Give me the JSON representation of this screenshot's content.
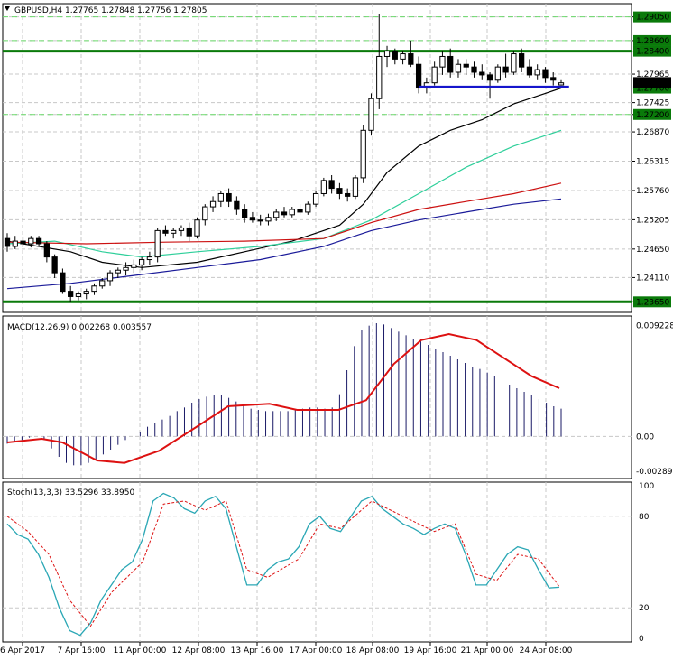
{
  "header": {
    "symbol_label": "GBPUSD,H4",
    "ohlc": "1.27765 1.27848 1.27756 1.27805",
    "menu_icon": "triangle-down-icon"
  },
  "colors": {
    "bull_candle": "#ffffff",
    "bear_candle": "#000000",
    "sma_fast": "#000000",
    "sma_mid": "#2ecf9a",
    "sma_slow": "#cc1111",
    "sma_long": "#1a1a99",
    "level_line": "#0a7a0a",
    "support_line": "#1515cc",
    "macd_hist": "#1a1a66",
    "macd_signal": "#dd1111",
    "stoch_main": "#2aa7b5",
    "stoch_signal": "#dd1111"
  },
  "chart_data": [
    {
      "type": "candlestick",
      "title": "GBPUSD,H4",
      "ylim": [
        1.2345,
        1.293
      ],
      "y_ticks": [
        "1.29050",
        "1.28600",
        "1.28400",
        "1.27965",
        "1.27700",
        "1.27425",
        "1.27200",
        "1.26870",
        "1.26315",
        "1.25760",
        "1.25205",
        "1.24650",
        "1.24110",
        "1.23650"
      ],
      "x_ticks": [
        "6 Apr 2017",
        "7 Apr 16:00",
        "11 Apr 00:00",
        "12 Apr 08:00",
        "13 Apr 16:00",
        "17 Apr 00:00",
        "18 Apr 08:00",
        "19 Apr 16:00",
        "21 Apr 00:00",
        "24 Apr 08:00"
      ],
      "candles": [
        [
          1.2485,
          1.2495,
          1.246,
          1.247
        ],
        [
          1.247,
          1.249,
          1.2465,
          1.248
        ],
        [
          1.248,
          1.2488,
          1.247,
          1.2475
        ],
        [
          1.2475,
          1.249,
          1.2468,
          1.2485
        ],
        [
          1.2485,
          1.249,
          1.247,
          1.2475
        ],
        [
          1.2475,
          1.248,
          1.244,
          1.245
        ],
        [
          1.245,
          1.2455,
          1.241,
          1.242
        ],
        [
          1.242,
          1.2428,
          1.238,
          1.2385
        ],
        [
          1.2385,
          1.2395,
          1.2365,
          1.2375
        ],
        [
          1.2375,
          1.2385,
          1.2368,
          1.238
        ],
        [
          1.238,
          1.239,
          1.237,
          1.2385
        ],
        [
          1.2385,
          1.24,
          1.2378,
          1.2395
        ],
        [
          1.2395,
          1.241,
          1.239,
          1.2405
        ],
        [
          1.2405,
          1.2425,
          1.2395,
          1.242
        ],
        [
          1.242,
          1.243,
          1.241,
          1.2425
        ],
        [
          1.2425,
          1.244,
          1.2415,
          1.243
        ],
        [
          1.243,
          1.2445,
          1.242,
          1.2435
        ],
        [
          1.2435,
          1.245,
          1.2425,
          1.2445
        ],
        [
          1.2445,
          1.246,
          1.2435,
          1.245
        ],
        [
          1.245,
          1.2505,
          1.244,
          1.25
        ],
        [
          1.25,
          1.251,
          1.249,
          1.2495
        ],
        [
          1.2495,
          1.2505,
          1.2485,
          1.25
        ],
        [
          1.25,
          1.251,
          1.249,
          1.2505
        ],
        [
          1.2505,
          1.2515,
          1.248,
          1.249
        ],
        [
          1.249,
          1.2525,
          1.2485,
          1.252
        ],
        [
          1.252,
          1.255,
          1.251,
          1.2545
        ],
        [
          1.2545,
          1.2565,
          1.2535,
          1.2555
        ],
        [
          1.2555,
          1.2575,
          1.2545,
          1.257
        ],
        [
          1.257,
          1.258,
          1.2545,
          1.2555
        ],
        [
          1.2555,
          1.2565,
          1.253,
          1.254
        ],
        [
          1.254,
          1.255,
          1.2515,
          1.2525
        ],
        [
          1.2525,
          1.2535,
          1.2515,
          1.252
        ],
        [
          1.252,
          1.253,
          1.251,
          1.2518
        ],
        [
          1.2518,
          1.2532,
          1.251,
          1.2525
        ],
        [
          1.2525,
          1.254,
          1.2518,
          1.2535
        ],
        [
          1.2535,
          1.2545,
          1.2525,
          1.253
        ],
        [
          1.253,
          1.2545,
          1.2525,
          1.254
        ],
        [
          1.254,
          1.255,
          1.253,
          1.2535
        ],
        [
          1.2535,
          1.2555,
          1.253,
          1.255
        ],
        [
          1.255,
          1.2575,
          1.2545,
          1.257
        ],
        [
          1.257,
          1.26,
          1.2565,
          1.2595
        ],
        [
          1.2595,
          1.2605,
          1.257,
          1.258
        ],
        [
          1.258,
          1.259,
          1.256,
          1.257
        ],
        [
          1.257,
          1.258,
          1.2555,
          1.2565
        ],
        [
          1.2565,
          1.2605,
          1.256,
          1.26
        ],
        [
          1.26,
          1.27,
          1.259,
          1.269
        ],
        [
          1.269,
          1.276,
          1.268,
          1.275
        ],
        [
          1.275,
          1.291,
          1.273,
          1.283
        ],
        [
          1.283,
          1.285,
          1.281,
          1.284
        ],
        [
          1.284,
          1.2845,
          1.2815,
          1.2825
        ],
        [
          1.2825,
          1.284,
          1.2815,
          1.2835
        ],
        [
          1.2835,
          1.286,
          1.281,
          1.2815
        ],
        [
          1.2815,
          1.283,
          1.276,
          1.277
        ],
        [
          1.277,
          1.279,
          1.276,
          1.278
        ],
        [
          1.278,
          1.282,
          1.2775,
          1.281
        ],
        [
          1.281,
          1.284,
          1.2795,
          1.283
        ],
        [
          1.283,
          1.2845,
          1.279,
          1.28
        ],
        [
          1.28,
          1.2825,
          1.279,
          1.2815
        ],
        [
          1.2815,
          1.2825,
          1.2795,
          1.281
        ],
        [
          1.281,
          1.282,
          1.279,
          1.28
        ],
        [
          1.28,
          1.2815,
          1.2785,
          1.2795
        ],
        [
          1.2795,
          1.28,
          1.275,
          1.2785
        ],
        [
          1.2785,
          1.2815,
          1.278,
          1.281
        ],
        [
          1.281,
          1.2835,
          1.279,
          1.28
        ],
        [
          1.28,
          1.284,
          1.2795,
          1.2835
        ],
        [
          1.2835,
          1.2845,
          1.28,
          1.281
        ],
        [
          1.281,
          1.2825,
          1.279,
          1.2795
        ],
        [
          1.2795,
          1.2815,
          1.2785,
          1.2805
        ],
        [
          1.2805,
          1.281,
          1.278,
          1.279
        ],
        [
          1.279,
          1.28,
          1.2775,
          1.2785
        ],
        [
          1.2776,
          1.2785,
          1.2775,
          1.278
        ]
      ],
      "moving_averages": [
        {
          "color_key": "sma_fast",
          "values": [
            [
              0,
              1.248
            ],
            [
              8,
              1.246
            ],
            [
              12,
              1.244
            ],
            [
              17,
              1.243
            ],
            [
              24,
              1.244
            ],
            [
              30,
              1.246
            ],
            [
              36,
              1.248
            ],
            [
              42,
              1.251
            ],
            [
              45,
              1.255
            ],
            [
              48,
              1.261
            ],
            [
              52,
              1.266
            ],
            [
              56,
              1.269
            ],
            [
              60,
              1.271
            ],
            [
              64,
              1.274
            ],
            [
              68,
              1.276
            ],
            [
              70,
              1.277
            ]
          ]
        },
        {
          "color_key": "sma_mid",
          "values": [
            [
              0,
              1.2475
            ],
            [
              6,
              1.248
            ],
            [
              12,
              1.246
            ],
            [
              17,
              1.245
            ],
            [
              24,
              1.246
            ],
            [
              32,
              1.247
            ],
            [
              40,
              1.2485
            ],
            [
              46,
              1.252
            ],
            [
              52,
              1.257
            ],
            [
              58,
              1.262
            ],
            [
              64,
              1.266
            ],
            [
              70,
              1.269
            ]
          ]
        },
        {
          "color_key": "sma_slow",
          "values": [
            [
              0,
              1.2478
            ],
            [
              10,
              1.2475
            ],
            [
              20,
              1.2478
            ],
            [
              30,
              1.248
            ],
            [
              40,
              1.2485
            ],
            [
              46,
              1.2515
            ],
            [
              52,
              1.254
            ],
            [
              58,
              1.2555
            ],
            [
              64,
              1.257
            ],
            [
              70,
              1.259
            ]
          ]
        },
        {
          "color_key": "sma_long",
          "values": [
            [
              0,
              1.239
            ],
            [
              8,
              1.24
            ],
            [
              16,
              1.2415
            ],
            [
              24,
              1.243
            ],
            [
              32,
              1.2445
            ],
            [
              40,
              1.247
            ],
            [
              46,
              1.25
            ],
            [
              52,
              1.252
            ],
            [
              58,
              1.2535
            ],
            [
              64,
              1.255
            ],
            [
              70,
              1.256
            ]
          ]
        }
      ],
      "levels": [
        {
          "value": 1.284,
          "label": "1.28400",
          "style": "solid-thick",
          "color_key": "level_line"
        },
        {
          "value": 1.2365,
          "label": "1.23650",
          "style": "solid-thick",
          "color_key": "level_line"
        },
        {
          "value": 1.2905,
          "label": "1.29050",
          "style": "dashed",
          "color_key": "level_line"
        },
        {
          "value": 1.286,
          "label": "1.28600",
          "style": "dashed",
          "color_key": "level_line"
        },
        {
          "value": 1.277,
          "label": "1.27700",
          "style": "dashed",
          "color_key": "level_line"
        },
        {
          "value": 1.272,
          "label": "1.27200",
          "style": "dashed",
          "color_key": "level_line"
        }
      ],
      "support": {
        "from_index": 52,
        "to_index": 71,
        "value": 1.2772,
        "color_key": "support_line"
      },
      "current_price": {
        "value": 1.27805,
        "label": "1.27805"
      }
    },
    {
      "type": "histogram+line",
      "title": "MACD(12,26,9) 0.002268 0.003557",
      "ylim": [
        -0.0035,
        0.01
      ],
      "y_ticks": [
        "0.009228",
        "0.00",
        "-0.002895"
      ],
      "histogram": [
        -0.0006,
        -0.0005,
        -0.0003,
        -0.0001,
        0.0,
        -0.0003,
        -0.001,
        -0.0017,
        -0.0022,
        -0.0024,
        -0.0024,
        -0.0022,
        -0.0019,
        -0.0015,
        -0.0011,
        -0.0007,
        -0.0003,
        0.0,
        0.0004,
        0.0008,
        0.0011,
        0.0014,
        0.0017,
        0.0021,
        0.0024,
        0.0028,
        0.0031,
        0.0033,
        0.0034,
        0.0034,
        0.0032,
        0.0029,
        0.0026,
        0.0023,
        0.0022,
        0.0021,
        0.0021,
        0.0021,
        0.0021,
        0.0022,
        0.0023,
        0.0024,
        0.0024,
        0.0023,
        0.0024,
        0.0035,
        0.0055,
        0.0075,
        0.0088,
        0.0092,
        0.0094,
        0.0093,
        0.009,
        0.0087,
        0.0084,
        0.0081,
        0.0079,
        0.0076,
        0.0073,
        0.007,
        0.0067,
        0.0064,
        0.0061,
        0.0058,
        0.0056,
        0.0053,
        0.005,
        0.0047,
        0.0043,
        0.004,
        0.0037,
        0.0034,
        0.0031,
        0.0028,
        0.0025,
        0.0023
      ],
      "signal": [
        [
          0,
          -0.0005
        ],
        [
          5,
          -0.0002
        ],
        [
          8,
          -0.0005
        ],
        [
          13,
          -0.002
        ],
        [
          17,
          -0.0022
        ],
        [
          22,
          -0.0012
        ],
        [
          28,
          0.001
        ],
        [
          32,
          0.0025
        ],
        [
          38,
          0.0027
        ],
        [
          42,
          0.0022
        ],
        [
          48,
          0.0022
        ],
        [
          52,
          0.003
        ],
        [
          56,
          0.006
        ],
        [
          60,
          0.008
        ],
        [
          64,
          0.0085
        ],
        [
          68,
          0.008
        ],
        [
          72,
          0.0065
        ],
        [
          76,
          0.005
        ],
        [
          80,
          0.004
        ]
      ],
      "zero_label": "0.00"
    },
    {
      "type": "line",
      "title": "Stoch(13,3,3) 33.5296 33.8950",
      "ylim": [
        0,
        100
      ],
      "y_ticks": [
        "100",
        "80",
        "20",
        "0"
      ],
      "main": [
        [
          0,
          75
        ],
        [
          2,
          68
        ],
        [
          4,
          65
        ],
        [
          6,
          55
        ],
        [
          8,
          40
        ],
        [
          10,
          20
        ],
        [
          12,
          5
        ],
        [
          14,
          2
        ],
        [
          16,
          10
        ],
        [
          18,
          25
        ],
        [
          20,
          35
        ],
        [
          22,
          45
        ],
        [
          24,
          50
        ],
        [
          26,
          65
        ],
        [
          28,
          90
        ],
        [
          30,
          95
        ],
        [
          32,
          92
        ],
        [
          34,
          85
        ],
        [
          36,
          82
        ],
        [
          38,
          90
        ],
        [
          40,
          93
        ],
        [
          42,
          85
        ],
        [
          44,
          60
        ],
        [
          46,
          35
        ],
        [
          48,
          35
        ],
        [
          50,
          45
        ],
        [
          52,
          50
        ],
        [
          54,
          52
        ],
        [
          56,
          60
        ],
        [
          58,
          75
        ],
        [
          60,
          80
        ],
        [
          62,
          72
        ],
        [
          64,
          70
        ],
        [
          66,
          80
        ],
        [
          68,
          90
        ],
        [
          70,
          93
        ],
        [
          72,
          85
        ],
        [
          74,
          80
        ],
        [
          76,
          75
        ],
        [
          78,
          72
        ],
        [
          80,
          68
        ],
        [
          82,
          72
        ],
        [
          84,
          75
        ],
        [
          86,
          72
        ],
        [
          88,
          55
        ],
        [
          90,
          35
        ],
        [
          92,
          35
        ],
        [
          94,
          45
        ],
        [
          96,
          55
        ],
        [
          98,
          60
        ],
        [
          100,
          58
        ],
        [
          102,
          45
        ],
        [
          104,
          33
        ],
        [
          106,
          33.5
        ]
      ],
      "signal": [
        [
          0,
          80
        ],
        [
          4,
          70
        ],
        [
          8,
          55
        ],
        [
          12,
          25
        ],
        [
          16,
          8
        ],
        [
          20,
          30
        ],
        [
          26,
          50
        ],
        [
          30,
          88
        ],
        [
          34,
          90
        ],
        [
          38,
          84
        ],
        [
          42,
          90
        ],
        [
          46,
          45
        ],
        [
          50,
          40
        ],
        [
          56,
          52
        ],
        [
          60,
          75
        ],
        [
          64,
          72
        ],
        [
          70,
          90
        ],
        [
          76,
          80
        ],
        [
          82,
          70
        ],
        [
          86,
          75
        ],
        [
          90,
          42
        ],
        [
          94,
          38
        ],
        [
          98,
          55
        ],
        [
          102,
          52
        ],
        [
          106,
          33.9
        ]
      ]
    }
  ]
}
